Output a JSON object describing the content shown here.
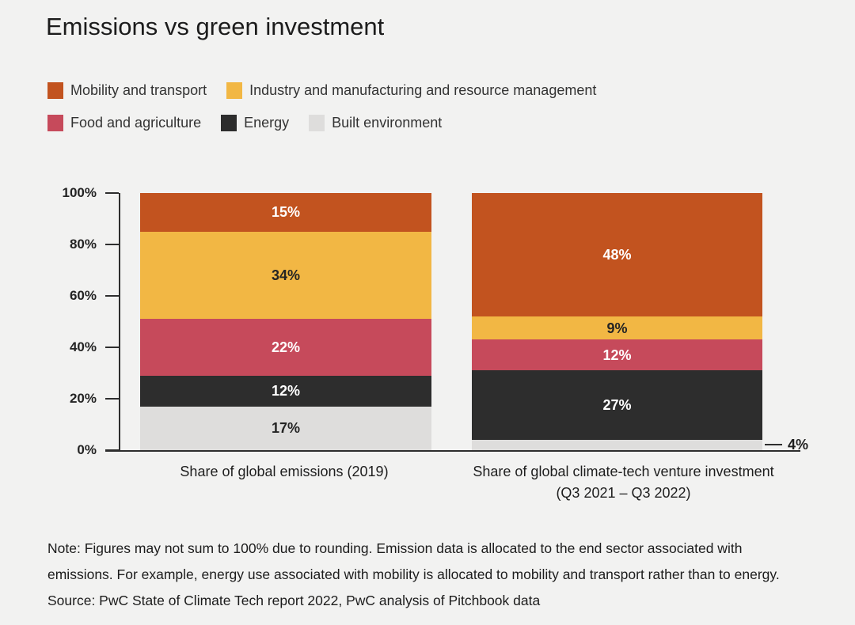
{
  "title": "Emissions vs green investment",
  "background_color": "#F2F2F1",
  "axis_color": "#2E2E2E",
  "chart_data": {
    "type": "bar",
    "stacked": true,
    "title": "Emissions vs green investment",
    "categories": [
      "Share of global emissions (2019)",
      "Share of global climate-tech venture investment (Q3 2021 – Q3 2022)"
    ],
    "series": [
      {
        "name": "Mobility and transport",
        "color": "#C2531F",
        "label_color": "#FFFFFF",
        "values": [
          15,
          48
        ]
      },
      {
        "name": "Industry and manufacturing and resource management",
        "color": "#F2B744",
        "label_color": "#242424",
        "values": [
          34,
          9
        ]
      },
      {
        "name": "Food and agriculture",
        "color": "#C64A5B",
        "label_color": "#FFFFFF",
        "values": [
          22,
          12
        ]
      },
      {
        "name": "Energy",
        "color": "#2D2D2D",
        "label_color": "#FFFFFF",
        "values": [
          12,
          27
        ]
      },
      {
        "name": "Built environment",
        "color": "#DEDDDC",
        "label_color": "#242424",
        "values": [
          17,
          4
        ]
      }
    ],
    "ylim": [
      0,
      100
    ],
    "yticks": [
      0,
      20,
      40,
      60,
      80,
      100
    ],
    "ytick_suffix": "%",
    "value_suffix": "%",
    "grid": false,
    "legend_position": "top-left",
    "legend_rows": [
      [
        0,
        1
      ],
      [
        2,
        3,
        4
      ]
    ],
    "callout": {
      "bar_index": 1,
      "series_index": 4,
      "label": "4%"
    }
  },
  "note_lines": [
    "Note: Figures may not sum to 100% due to rounding. Emission data is allocated to the end sector associated with",
    "emissions. For example, energy use associated with mobility is allocated to mobility and transport rather than to energy.",
    "Source: PwC State of Climate Tech report 2022, PwC analysis of Pitchbook data"
  ]
}
